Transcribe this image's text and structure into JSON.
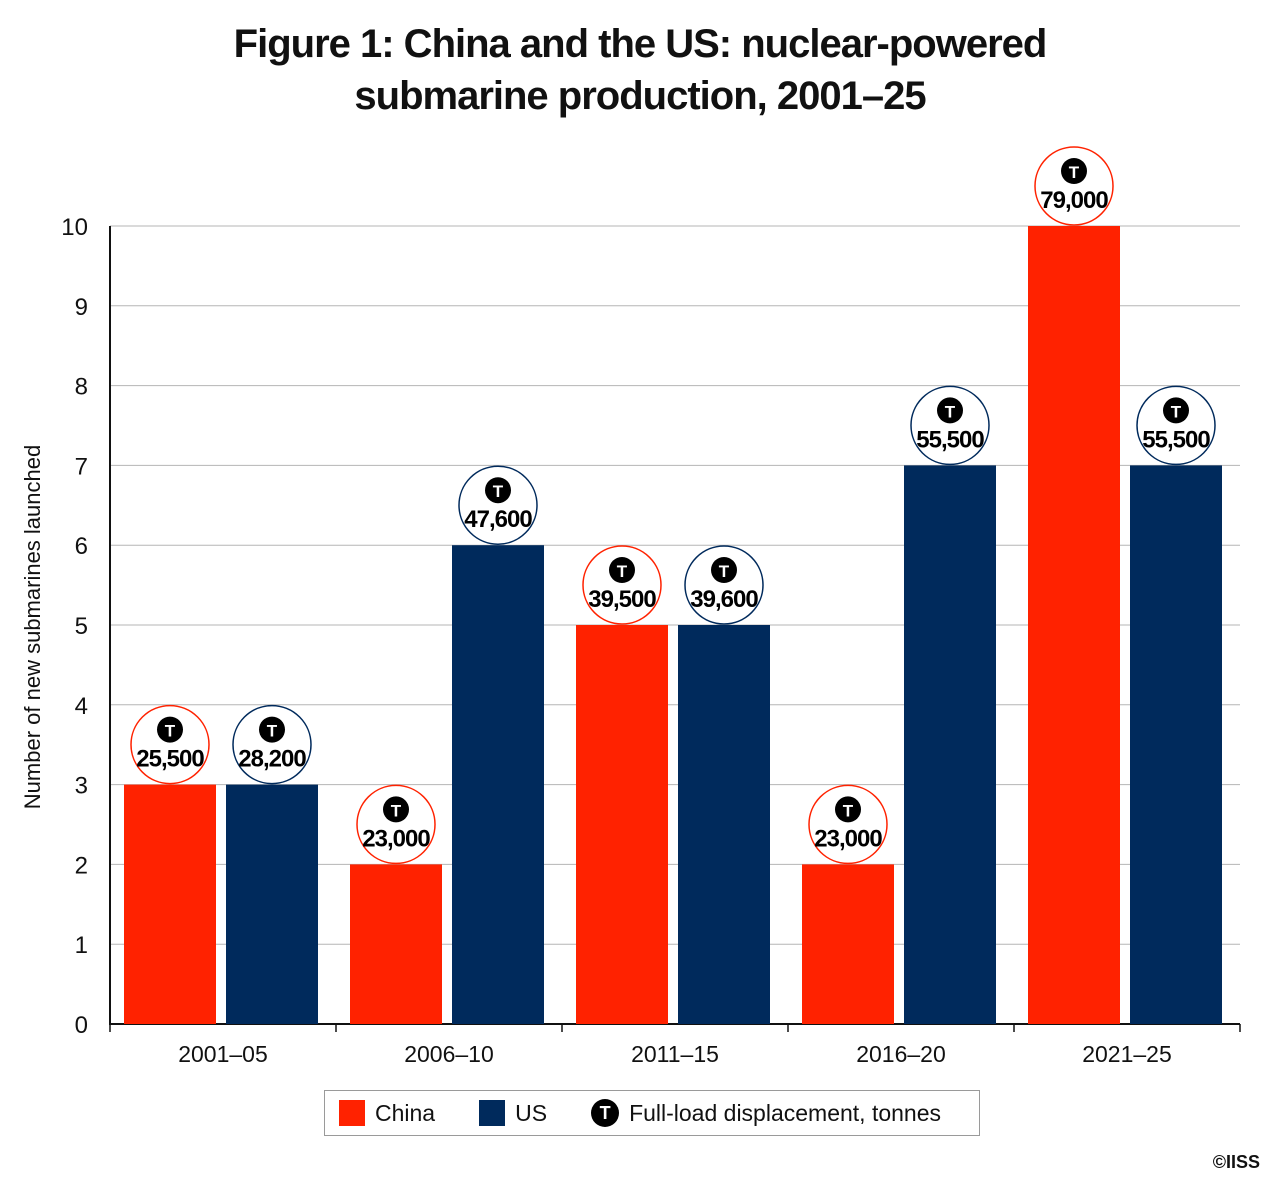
{
  "title_line1": "Figure 1: China and the US: nuclear-powered",
  "title_line2": "submarine production, 2001–25",
  "copyright": "©IISS",
  "legend": {
    "china_label": "China",
    "us_label": "US",
    "token_letter": "T",
    "token_label": "Full-load displacement, tonnes"
  },
  "colors": {
    "china": "#ff2200",
    "us": "#002a5c",
    "grid": "#b5b5b5",
    "token": "#000000"
  },
  "chart_data": {
    "type": "bar",
    "title": "Figure 1: China and the US: nuclear-powered submarine production, 2001–25",
    "xlabel": "",
    "ylabel": "Number of new submarines launched",
    "ylim": [
      0,
      10
    ],
    "yticks": [
      0,
      1,
      2,
      3,
      4,
      5,
      6,
      7,
      8,
      9,
      10
    ],
    "grid": true,
    "legend_position": "bottom",
    "categories": [
      "2001–05",
      "2006–10",
      "2011–15",
      "2016–20",
      "2021–25"
    ],
    "series": [
      {
        "name": "China",
        "values": [
          3,
          2,
          5,
          2,
          10
        ],
        "displacement_labels": [
          "25,500",
          "23,000",
          "39,500",
          "23,000",
          "79,000"
        ]
      },
      {
        "name": "US",
        "values": [
          3,
          6,
          5,
          7,
          7
        ],
        "displacement_labels": [
          "28,200",
          "47,600",
          "39,600",
          "55,500",
          "55,500"
        ]
      }
    ]
  }
}
